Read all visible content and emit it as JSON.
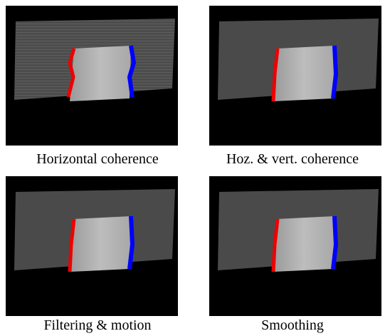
{
  "panels": [
    {
      "caption": "Horizontal coherence"
    },
    {
      "caption": "Hoz. & vert. coherence"
    },
    {
      "caption": "Filtering & motion"
    },
    {
      "caption": "Smoothing"
    }
  ]
}
